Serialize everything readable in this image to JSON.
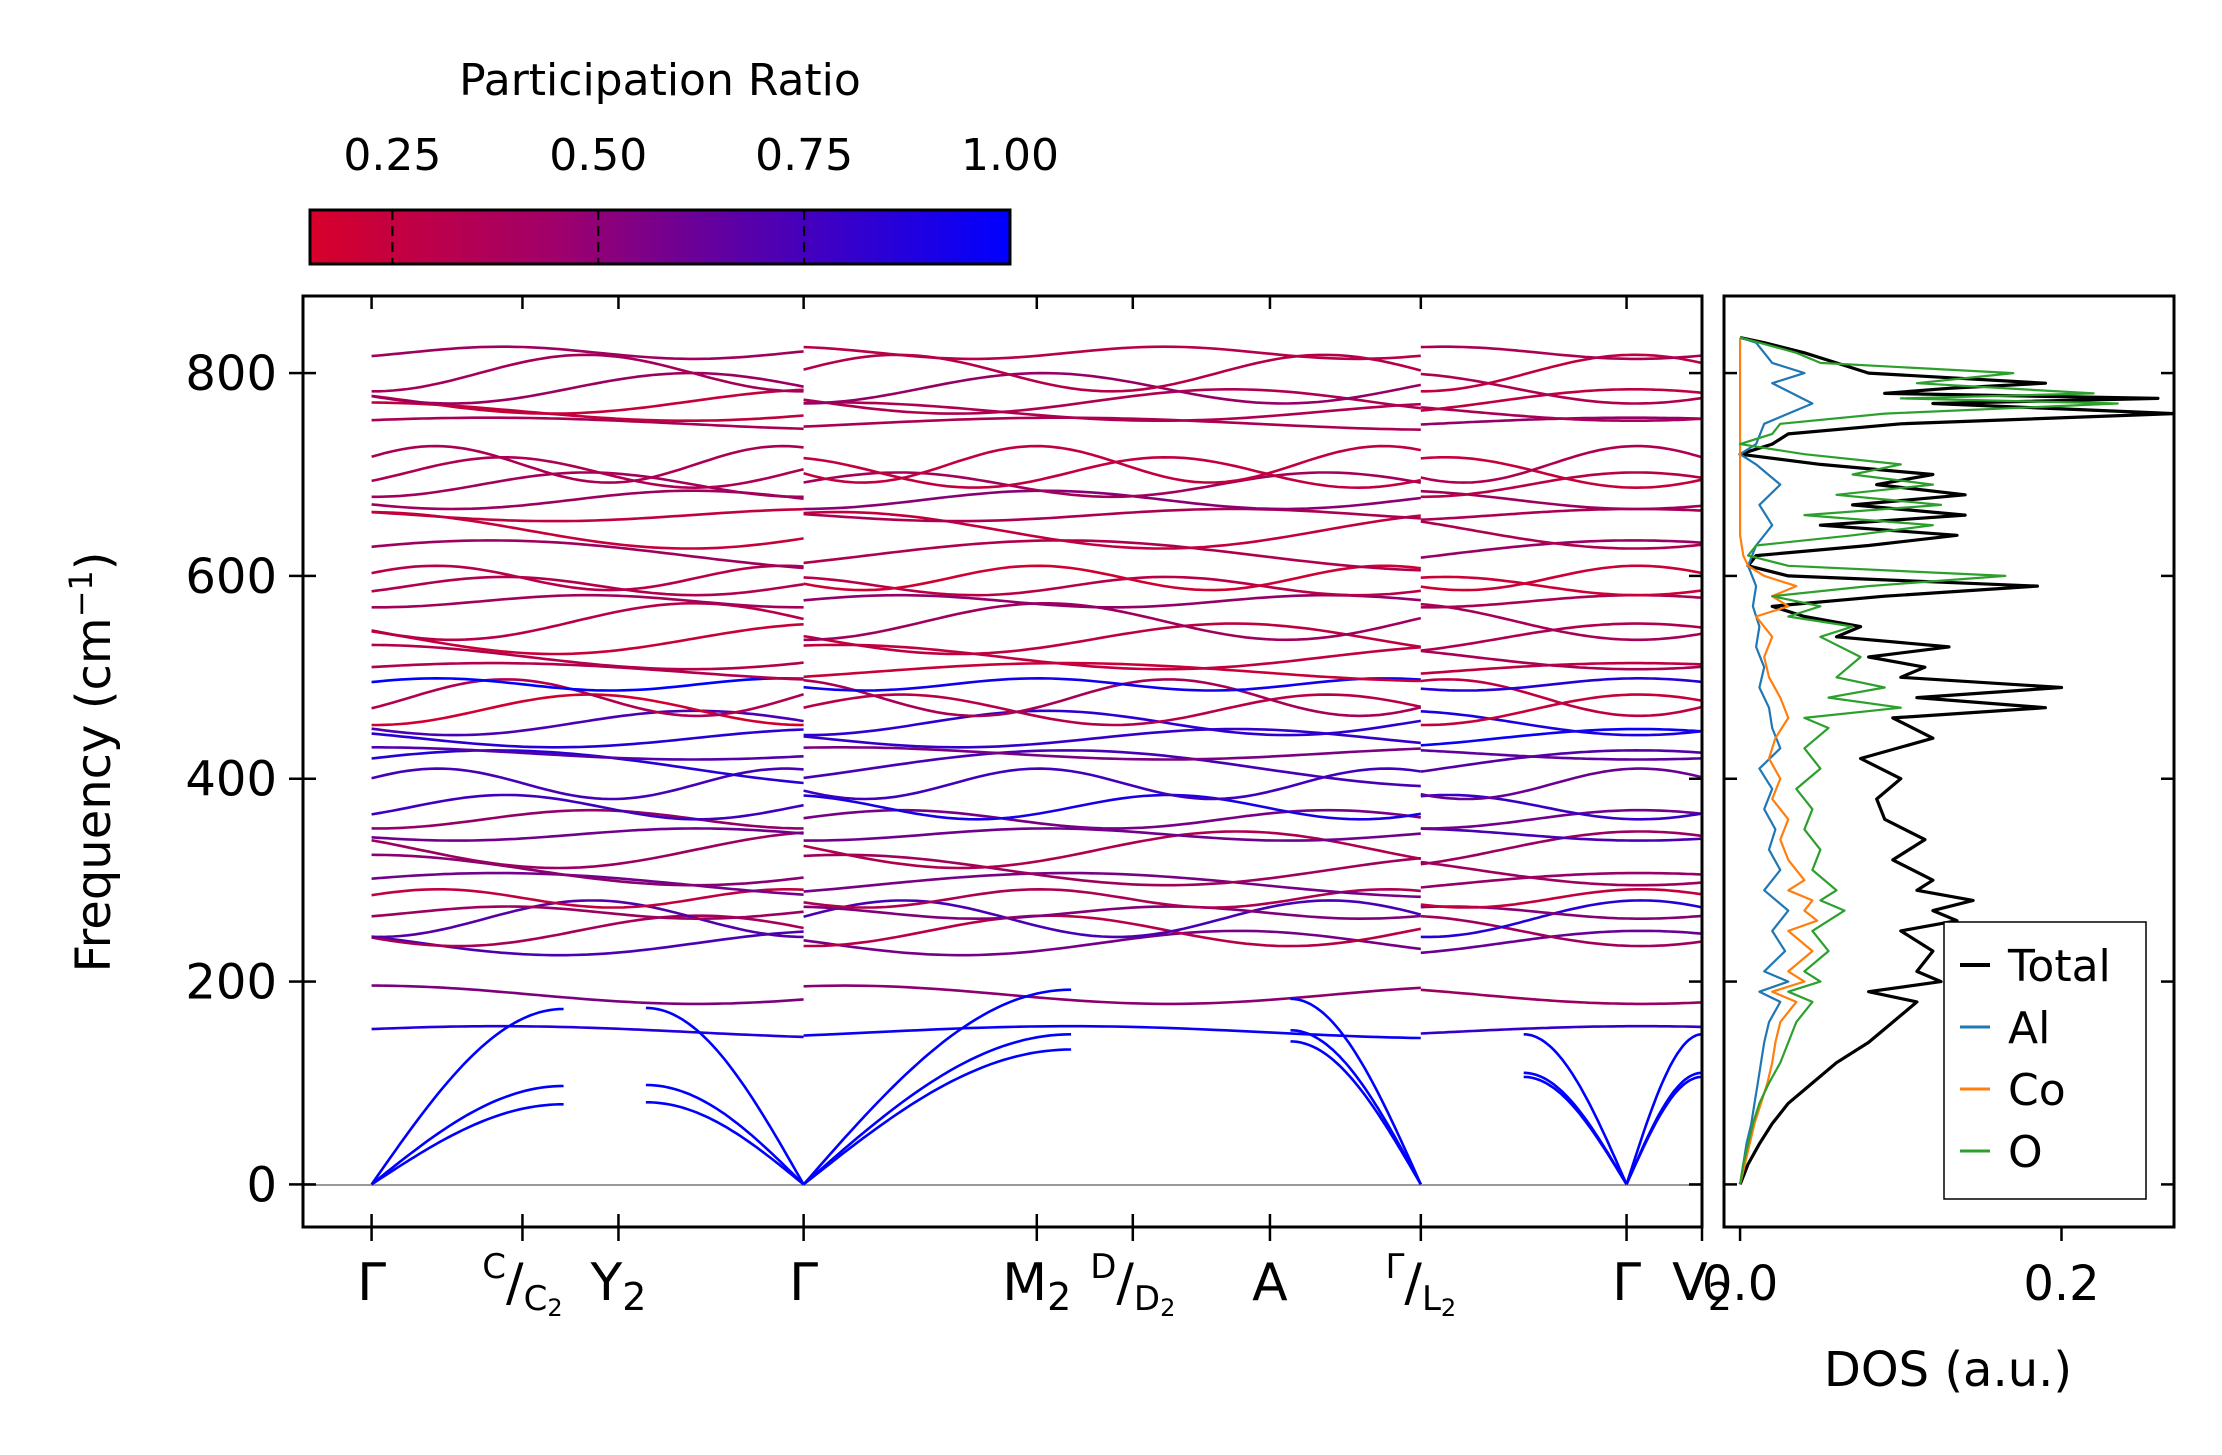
{
  "chart_data": [
    {
      "type": "line",
      "subtype": "phonon-band-structure",
      "ylabel": "Frequency (cm",
      "ylabel_sup": "−1",
      "ylabel_close": ")",
      "ylim": [
        -42,
        876
      ],
      "yticks": [
        0,
        200,
        400,
        600,
        800
      ],
      "ytick_labels": [
        "0",
        "200",
        "400",
        "600",
        "800"
      ],
      "xlim": [
        0,
        10.2
      ],
      "segments": [
        [
          0.5,
          3.65
        ],
        [
          3.65,
          8.15
        ],
        [
          8.15,
          10.2
        ]
      ],
      "high_symmetry_points": [
        {
          "pos": 0.5,
          "label": "Γ"
        },
        {
          "pos": 1.6,
          "label_top": "C",
          "label_bottom": "C",
          "label_bottom_sub": "2"
        },
        {
          "pos": 2.3,
          "label": "Y",
          "sub": "2"
        },
        {
          "pos": 3.65,
          "label": "Γ"
        },
        {
          "pos": 5.35,
          "label": "M",
          "sub": "2"
        },
        {
          "pos": 6.05,
          "label_top": "D",
          "label_bottom": "D",
          "label_bottom_sub": "2"
        },
        {
          "pos": 7.05,
          "label": "A"
        },
        {
          "pos": 8.15,
          "label_top": "Γ",
          "label_bottom": "L",
          "label_bottom_sub": "2"
        },
        {
          "pos": 9.65,
          "label": "Γ"
        },
        {
          "pos": 10.2,
          "label": "V",
          "sub": "2"
        }
      ],
      "color_scale": {
        "title": "Participation Ratio",
        "range": [
          0.15,
          1.0
        ],
        "ticks": [
          0.25,
          0.5,
          0.75,
          1.0
        ],
        "tick_labels": [
          "0.25",
          "0.50",
          "0.75",
          "1.00"
        ],
        "low_color": "#d7002a",
        "mid_color": "#8a0070",
        "high_color": "#0000ff"
      },
      "acoustic_branches": {
        "gamma_points": [
          0.5,
          3.65,
          8.15,
          9.65
        ],
        "Y2_frequencies": [
          81,
          98,
          174
        ],
        "C2_frequencies": [
          79,
          97,
          173
        ],
        "M2_frequencies": [
          133,
          148,
          192
        ],
        "A_frequencies": [
          141,
          152,
          183
        ],
        "V2_frequencies": [
          106,
          110,
          148
        ]
      },
      "optical_band_levels": {
        "values": [
          150,
          187,
          238,
          250,
          262,
          268,
          282,
          295,
          310,
          330,
          345,
          360,
          372,
          395,
          410,
          425,
          440,
          455,
          468,
          480,
          493,
          505,
          520,
          538,
          555,
          575,
          590,
          598,
          620,
          645,
          660,
          675,
          690,
          702,
          710,
          750,
          762,
          772,
          785,
          800,
          820
        ],
        "participation": [
          0.9,
          0.55,
          0.7,
          0.4,
          0.8,
          0.55,
          0.3,
          0.6,
          0.5,
          0.45,
          0.7,
          0.6,
          0.85,
          0.75,
          0.8,
          0.7,
          0.9,
          0.85,
          0.25,
          0.35,
          0.95,
          0.3,
          0.35,
          0.3,
          0.4,
          0.45,
          0.3,
          0.25,
          0.45,
          0.3,
          0.35,
          0.5,
          0.4,
          0.3,
          0.35,
          0.45,
          0.35,
          0.3,
          0.45,
          0.35,
          0.4
        ]
      }
    },
    {
      "type": "line",
      "subtype": "density-of-states",
      "xlabel": "DOS (a.u.)",
      "xlim": [
        -0.01,
        0.27
      ],
      "xticks": [
        0.0,
        0.2
      ],
      "xtick_labels": [
        "0.0",
        "0.2"
      ],
      "ylim": [
        -42,
        876
      ],
      "legend_position": "bottom-right",
      "series": [
        {
          "name": "Total",
          "color": "#000000",
          "width": 3.2,
          "freq": [
            0,
            20,
            40,
            60,
            80,
            100,
            120,
            140,
            160,
            180,
            190,
            200,
            210,
            230,
            250,
            260,
            270,
            280,
            290,
            300,
            320,
            340,
            360,
            380,
            400,
            420,
            440,
            460,
            470,
            480,
            490,
            500,
            510,
            520,
            530,
            540,
            550,
            560,
            570,
            580,
            590,
            600,
            610,
            620,
            630,
            640,
            650,
            660,
            670,
            680,
            690,
            700,
            710,
            720,
            730,
            740,
            750,
            760,
            770,
            775,
            780,
            785,
            790,
            800,
            810,
            820,
            830,
            835
          ],
          "values": [
            0.0,
            0.005,
            0.012,
            0.02,
            0.03,
            0.045,
            0.06,
            0.08,
            0.095,
            0.11,
            0.08,
            0.125,
            0.11,
            0.12,
            0.1,
            0.135,
            0.12,
            0.145,
            0.11,
            0.12,
            0.095,
            0.115,
            0.09,
            0.085,
            0.1,
            0.075,
            0.12,
            0.095,
            0.19,
            0.11,
            0.2,
            0.1,
            0.115,
            0.08,
            0.13,
            0.06,
            0.075,
            0.04,
            0.02,
            0.09,
            0.185,
            0.03,
            0.005,
            0.01,
            0.08,
            0.135,
            0.05,
            0.14,
            0.07,
            0.14,
            0.085,
            0.12,
            0.05,
            0.0,
            0.02,
            0.03,
            0.1,
            0.27,
            0.12,
            0.26,
            0.09,
            0.13,
            0.19,
            0.08,
            0.06,
            0.04,
            0.015,
            0.0
          ]
        },
        {
          "name": "Al",
          "color": "#1f77b4",
          "width": 2.2,
          "freq": [
            0,
            20,
            40,
            60,
            80,
            100,
            120,
            140,
            160,
            180,
            190,
            200,
            210,
            230,
            250,
            270,
            290,
            310,
            330,
            350,
            370,
            390,
            410,
            430,
            450,
            470,
            490,
            510,
            530,
            550,
            570,
            590,
            610,
            630,
            650,
            670,
            690,
            710,
            720,
            730,
            750,
            770,
            790,
            800,
            810,
            820,
            830,
            835
          ],
          "values": [
            0.0,
            0.002,
            0.004,
            0.007,
            0.009,
            0.011,
            0.013,
            0.015,
            0.018,
            0.025,
            0.012,
            0.03,
            0.015,
            0.028,
            0.02,
            0.03,
            0.015,
            0.025,
            0.018,
            0.022,
            0.015,
            0.02,
            0.012,
            0.025,
            0.02,
            0.018,
            0.012,
            0.015,
            0.01,
            0.012,
            0.008,
            0.01,
            0.005,
            0.01,
            0.02,
            0.012,
            0.025,
            0.01,
            0.0,
            0.01,
            0.015,
            0.045,
            0.02,
            0.04,
            0.02,
            0.015,
            0.01,
            0.0
          ]
        },
        {
          "name": "Co",
          "color": "#ff7f0e",
          "width": 2.2,
          "freq": [
            0,
            20,
            40,
            60,
            80,
            100,
            120,
            140,
            160,
            180,
            190,
            200,
            210,
            230,
            250,
            260,
            270,
            280,
            290,
            300,
            320,
            340,
            360,
            380,
            400,
            420,
            440,
            460,
            480,
            500,
            520,
            540,
            560,
            570,
            580,
            590,
            600,
            610,
            620,
            630,
            640,
            700,
            720,
            760,
            800,
            835
          ],
          "values": [
            0.0,
            0.003,
            0.006,
            0.009,
            0.013,
            0.017,
            0.02,
            0.022,
            0.025,
            0.035,
            0.02,
            0.04,
            0.03,
            0.045,
            0.03,
            0.048,
            0.04,
            0.045,
            0.03,
            0.04,
            0.03,
            0.025,
            0.03,
            0.02,
            0.025,
            0.018,
            0.022,
            0.03,
            0.025,
            0.018,
            0.015,
            0.02,
            0.01,
            0.03,
            0.02,
            0.035,
            0.015,
            0.005,
            0.002,
            0.001,
            0.0,
            0.0,
            0.0,
            0.0,
            0.0,
            0.0
          ]
        },
        {
          "name": "O",
          "color": "#2ca02c",
          "width": 2.2,
          "freq": [
            0,
            20,
            40,
            60,
            80,
            100,
            120,
            140,
            160,
            180,
            190,
            200,
            210,
            230,
            250,
            270,
            280,
            290,
            310,
            330,
            350,
            370,
            390,
            410,
            430,
            450,
            460,
            470,
            480,
            490,
            500,
            520,
            540,
            550,
            560,
            570,
            580,
            590,
            600,
            610,
            620,
            630,
            640,
            650,
            660,
            670,
            680,
            690,
            700,
            710,
            720,
            730,
            740,
            750,
            760,
            770,
            775,
            780,
            790,
            800,
            810,
            820,
            830,
            835
          ],
          "values": [
            0.0,
            0.002,
            0.005,
            0.008,
            0.012,
            0.018,
            0.025,
            0.03,
            0.035,
            0.045,
            0.03,
            0.05,
            0.04,
            0.055,
            0.045,
            0.065,
            0.05,
            0.06,
            0.045,
            0.05,
            0.04,
            0.045,
            0.035,
            0.05,
            0.04,
            0.055,
            0.04,
            0.1,
            0.055,
            0.09,
            0.06,
            0.075,
            0.05,
            0.07,
            0.03,
            0.05,
            0.02,
            0.08,
            0.165,
            0.03,
            0.005,
            0.01,
            0.07,
            0.12,
            0.04,
            0.125,
            0.06,
            0.12,
            0.07,
            0.1,
            0.04,
            0.0,
            0.02,
            0.025,
            0.09,
            0.235,
            0.1,
            0.22,
            0.11,
            0.17,
            0.05,
            0.035,
            0.012,
            0.0
          ]
        }
      ]
    }
  ]
}
